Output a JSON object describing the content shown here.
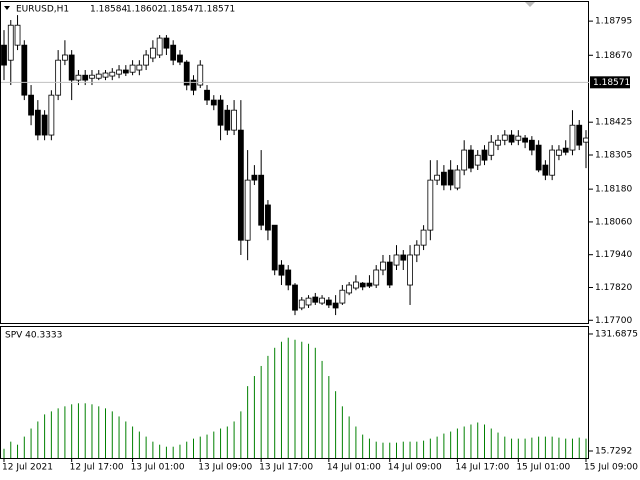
{
  "chart_data": [
    {
      "type": "candlestick",
      "title": "EURUSD,H1",
      "header_values": [
        1.18584,
        1.18602,
        1.18547,
        1.18571
      ],
      "categories": [
        "12 Jul 2021",
        null,
        null,
        null,
        null,
        null,
        null,
        null,
        null,
        null,
        "12 Jul 17:00",
        null,
        null,
        null,
        null,
        null,
        null,
        null,
        null,
        "13 Jul 01:00",
        null,
        null,
        null,
        null,
        null,
        null,
        null,
        null,
        null,
        "13 Jul 09:00",
        null,
        null,
        null,
        null,
        null,
        null,
        null,
        null,
        "13 Jul 17:00",
        null,
        null,
        null,
        null,
        null,
        null,
        null,
        null,
        null,
        "14 Jul 01:00",
        null,
        null,
        null,
        null,
        null,
        null,
        null,
        null,
        "14 Jul 09:00",
        null,
        null,
        null,
        null,
        null,
        null,
        null,
        null,
        null,
        "14 Jul 17:00",
        null,
        null,
        null,
        null,
        null,
        null,
        null,
        null,
        "15 Jul 01:00",
        null,
        null,
        null,
        null,
        null,
        null,
        null,
        null,
        null,
        "15 Jul 09:00"
      ],
      "open": [
        1.18707,
        1.18652,
        1.18707,
        1.18707,
        1.18524,
        1.18469,
        1.18451,
        1.18378,
        1.18524,
        1.18652,
        1.18671,
        1.18579,
        1.18597,
        1.18586,
        1.18586,
        1.1859,
        1.18594,
        1.18601,
        1.18616,
        1.18608,
        1.18616,
        1.18634,
        1.1866,
        1.18671,
        1.18733,
        1.18707,
        1.18671,
        1.18645,
        1.18579,
        1.18561,
        1.18542,
        1.18506,
        1.18506,
        1.18469,
        1.18396,
        1.18396,
        1.17993,
        1.18231,
        1.18231,
        1.18122,
        1.18048,
        1.17902,
        1.17884,
        1.17829,
        1.17745,
        1.17756,
        1.17785,
        1.17763,
        1.17774,
        1.17763,
        1.17763,
        1.178,
        1.17818,
        1.17836,
        1.17836,
        1.17829,
        1.17884,
        1.17913,
        1.17902,
        1.17939,
        1.17829,
        1.17939,
        1.17975,
        1.1803,
        1.18213,
        1.18242,
        1.1825,
        1.18184,
        1.1825,
        1.18323,
        1.18268,
        1.18323,
        1.18304,
        1.18341,
        1.18359,
        1.18378,
        1.18359,
        1.18367,
        1.18359,
        1.18341,
        1.18268,
        1.18231,
        1.18304,
        1.1833,
        1.18323,
        1.18414,
        1.18352
      ],
      "high": [
        1.18762,
        1.18799,
        1.18817,
        1.18725,
        1.18561,
        1.18506,
        1.18469,
        1.18542,
        1.18689,
        1.18725,
        1.18689,
        1.18616,
        1.18616,
        1.18616,
        1.18616,
        1.18616,
        1.18623,
        1.18634,
        1.18634,
        1.18652,
        1.18652,
        1.18689,
        1.18725,
        1.18744,
        1.18744,
        1.18725,
        1.18689,
        1.18652,
        1.18597,
        1.18652,
        1.18561,
        1.18524,
        1.18524,
        1.18488,
        1.18506,
        1.18506,
        1.18323,
        1.18268,
        1.18323,
        1.1814,
        1.18048,
        1.1792,
        1.17902,
        1.17836,
        1.17785,
        1.17792,
        1.178,
        1.17792,
        1.17785,
        1.17792,
        1.17829,
        1.1784,
        1.17865,
        1.1784,
        1.17865,
        1.17902,
        1.17939,
        1.17939,
        1.17975,
        1.17957,
        1.17975,
        1.17993,
        1.18048,
        1.18286,
        1.18286,
        1.18268,
        1.18286,
        1.18268,
        1.18359,
        1.18341,
        1.18323,
        1.18341,
        1.18378,
        1.18378,
        1.18396,
        1.18396,
        1.18396,
        1.18378,
        1.18374,
        1.18359,
        1.18286,
        1.18341,
        1.18341,
        1.18359,
        1.18469,
        1.18433,
        1.18396
      ],
      "low": [
        1.18579,
        1.18561,
        1.18689,
        1.18506,
        1.18414,
        1.18359,
        1.18359,
        1.18359,
        1.18506,
        1.18634,
        1.18506,
        1.18561,
        1.18561,
        1.18561,
        1.18579,
        1.18579,
        1.18579,
        1.18586,
        1.18594,
        1.18597,
        1.18597,
        1.18616,
        1.18645,
        1.1866,
        1.18671,
        1.18634,
        1.18634,
        1.18542,
        1.18524,
        1.1855,
        1.18488,
        1.18469,
        1.18359,
        1.18378,
        1.18378,
        1.17939,
        1.1792,
        1.18195,
        1.1803,
        1.17993,
        1.17865,
        1.17829,
        1.1781,
        1.17719,
        1.17737,
        1.17745,
        1.17756,
        1.17756,
        1.17745,
        1.17719,
        1.17756,
        1.17792,
        1.1781,
        1.1781,
        1.17818,
        1.17818,
        1.17865,
        1.17818,
        1.17884,
        1.17884,
        1.17756,
        1.17913,
        1.17957,
        1.17993,
        1.18195,
        1.18176,
        1.18176,
        1.18176,
        1.18231,
        1.18242,
        1.1825,
        1.18268,
        1.18286,
        1.18323,
        1.18341,
        1.18341,
        1.18341,
        1.1833,
        1.18304,
        1.18242,
        1.18213,
        1.18213,
        1.18286,
        1.18304,
        1.18304,
        1.18323,
        1.18257
      ],
      "close": [
        1.18634,
        1.1878,
        1.1878,
        1.18524,
        1.18451,
        1.18378,
        1.18378,
        1.18524,
        1.18652,
        1.18671,
        1.18579,
        1.18597,
        1.18579,
        1.18597,
        1.18601,
        1.18605,
        1.18608,
        1.18616,
        1.18605,
        1.18634,
        1.18634,
        1.18671,
        1.18696,
        1.18733,
        1.18696,
        1.18652,
        1.18645,
        1.18561,
        1.18542,
        1.18634,
        1.18506,
        1.18488,
        1.18414,
        1.18396,
        1.18469,
        1.17993,
        1.18213,
        1.18213,
        1.18048,
        1.1803,
        1.17884,
        1.17865,
        1.17829,
        1.17737,
        1.17774,
        1.17781,
        1.17766,
        1.17781,
        1.17756,
        1.17745,
        1.1781,
        1.17829,
        1.1784,
        1.17822,
        1.17825,
        1.17884,
        1.17913,
        1.17829,
        1.17939,
        1.1792,
        1.17939,
        1.17975,
        1.1803,
        1.18213,
        1.18231,
        1.18195,
        1.18195,
        1.1825,
        1.18323,
        1.18257,
        1.18304,
        1.18286,
        1.18352,
        1.18359,
        1.18378,
        1.18352,
        1.18374,
        1.18352,
        1.18323,
        1.1825,
        1.18231,
        1.18323,
        1.18323,
        1.18315,
        1.18414,
        1.18341,
        1.18367
      ],
      "up_color": "#ffffff",
      "down_color": "#000000",
      "bid": 1.18571,
      "ylim": [
        1.1769,
        1.18865
      ],
      "yticks": [
        1.18795,
        {
          "value": 1.1867,
          "label": "1.18670"
        },
        1.18425,
        1.18305,
        {
          "value": 1.1818,
          "label": "1.18180"
        },
        {
          "value": 1.1806,
          "label": "1.18060"
        },
        {
          "value": 1.1794,
          "label": "1.17940"
        },
        {
          "value": 1.1782,
          "label": "1.17820"
        },
        {
          "value": 1.177,
          "label": "1.17700"
        }
      ]
    },
    {
      "type": "bar",
      "title": "SPV 40.3333",
      "color": "#008000",
      "values": [
        18,
        25,
        22,
        30,
        38,
        45,
        52,
        55,
        58,
        60,
        62,
        63,
        63,
        62,
        60,
        58,
        55,
        50,
        45,
        40,
        35,
        30,
        25,
        22,
        20,
        20,
        22,
        25,
        28,
        30,
        32,
        35,
        38,
        40,
        45,
        55,
        80,
        90,
        100,
        110,
        118,
        124,
        128,
        126,
        124,
        122,
        118,
        105,
        90,
        75,
        60,
        50,
        40,
        32,
        28,
        25,
        24,
        24,
        24,
        25,
        25,
        25,
        26,
        28,
        30,
        33,
        35,
        38,
        40,
        42,
        44,
        42,
        38,
        34,
        30,
        28,
        28,
        28,
        29,
        30,
        30,
        30,
        29,
        28,
        28,
        29,
        28
      ],
      "ylim": [
        8.8,
        138.6
      ],
      "yticks": [
        131.6875,
        15.7292
      ]
    }
  ]
}
